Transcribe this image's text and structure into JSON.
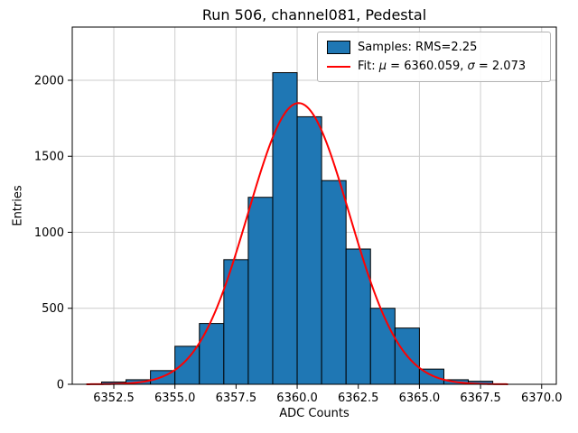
{
  "chart_data": {
    "type": "bar",
    "title": "Run 506, channel081, Pedestal",
    "xlabel": "ADC Counts",
    "ylabel": "Entries",
    "xlim": [
      6350.8,
      6370.6
    ],
    "ylim": [
      0,
      2350
    ],
    "xtick_values": [
      6352.5,
      6355.0,
      6357.5,
      6360.0,
      6362.5,
      6365.0,
      6367.5,
      6370.0
    ],
    "xtick_labels": [
      "6352.5",
      "6355.0",
      "6357.5",
      "6360.0",
      "6362.5",
      "6365.0",
      "6367.5",
      "6370.0"
    ],
    "ytick_values": [
      0,
      500,
      1000,
      1500,
      2000
    ],
    "ytick_labels": [
      "0",
      "500",
      "1000",
      "1500",
      "2000"
    ],
    "grid": true,
    "grid_color": "#cccccc",
    "frame_color": "#000000",
    "histogram": {
      "bin_start": 6352,
      "bin_width": 1,
      "counts": [
        15,
        30,
        90,
        250,
        400,
        820,
        1230,
        2050,
        1760,
        1340,
        890,
        500,
        370,
        100,
        30,
        20
      ],
      "bar_color": "#1f77b4",
      "edge_color": "#000000"
    },
    "fit": {
      "mu": 6360.059,
      "sigma": 2.073,
      "amplitude": 1850,
      "color": "#ff0000",
      "x_range": [
        6351.4,
        6368.6
      ]
    },
    "legend": {
      "position": "upper right",
      "samples_label": "Samples: RMS=2.25",
      "fit_label": "Fit: μ = 6360.059, σ = 2.073",
      "fit_label_parts": {
        "prefix": "Fit: ",
        "mu_symbol": "μ",
        "mu_value": " = 6360.059, ",
        "sigma_symbol": "σ",
        "sigma_value": " = 2.073"
      }
    }
  }
}
